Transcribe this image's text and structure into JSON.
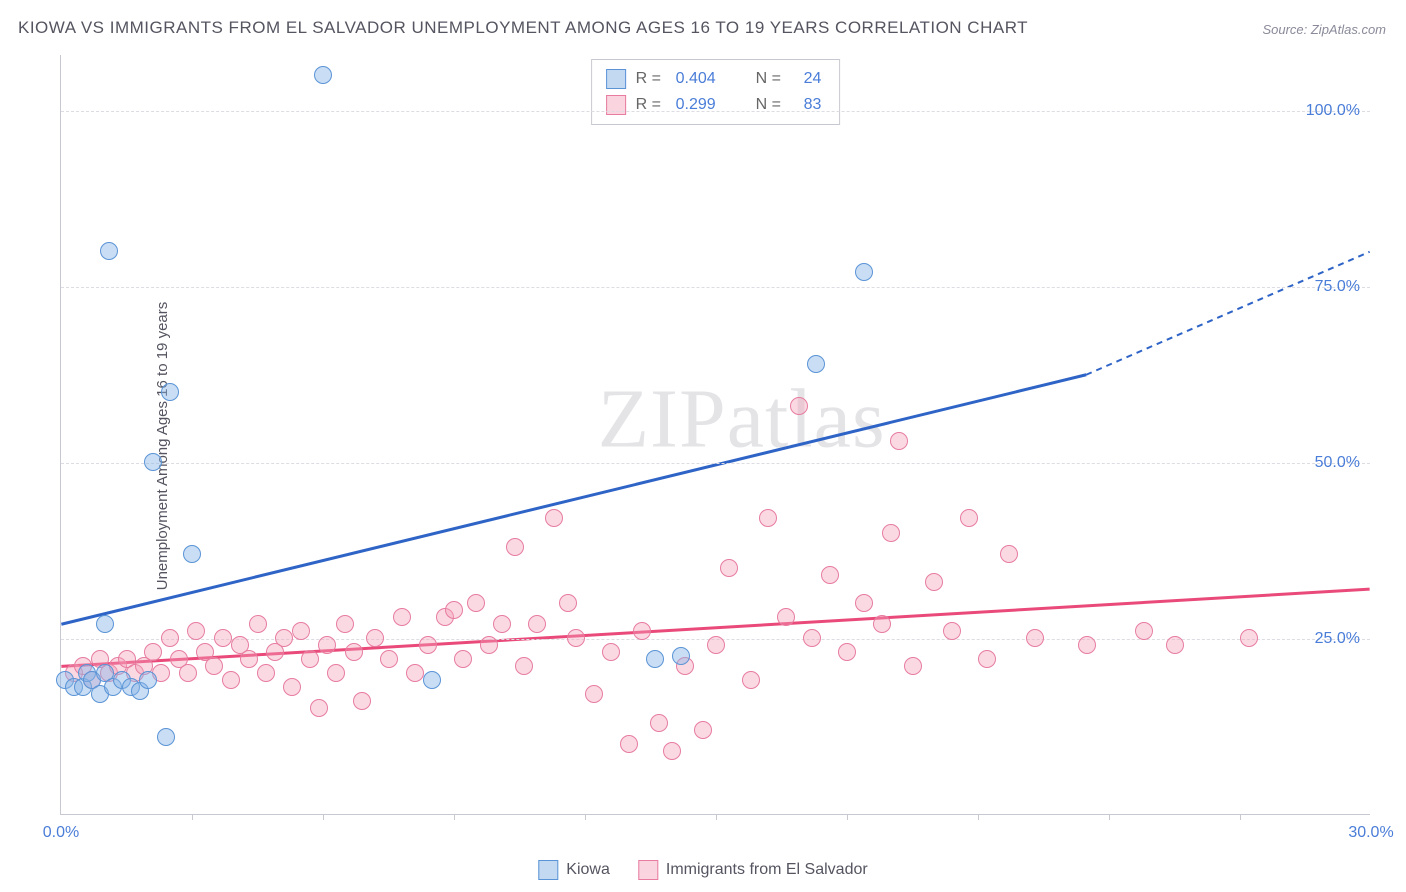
{
  "title": "KIOWA VS IMMIGRANTS FROM EL SALVADOR UNEMPLOYMENT AMONG AGES 16 TO 19 YEARS CORRELATION CHART",
  "source": "Source: ZipAtlas.com",
  "y_axis_label": "Unemployment Among Ages 16 to 19 years",
  "watermark": "ZIPatlas",
  "chart": {
    "type": "scatter",
    "xlim": [
      0,
      30
    ],
    "ylim": [
      0,
      108
    ],
    "x_ticks_major": [
      0,
      30
    ],
    "x_ticks_minor": [
      3,
      6,
      9,
      12,
      15,
      18,
      21,
      24,
      27
    ],
    "x_tick_labels": {
      "0": "0.0%",
      "30": "30.0%"
    },
    "y_gridlines": [
      25,
      50,
      75,
      100
    ],
    "y_tick_labels": {
      "25": "25.0%",
      "50": "50.0%",
      "75": "75.0%",
      "100": "100.0%"
    },
    "grid_color": "#dcdce2",
    "axis_color": "#c8c8d0",
    "background_color": "#ffffff",
    "tick_label_color": "#4a7dd8",
    "tick_label_fontsize": 16,
    "title_color": "#555561",
    "title_fontsize": 17
  },
  "series": {
    "kiowa": {
      "label": "Kiowa",
      "marker_fill": "rgba(135,180,230,0.45)",
      "marker_stroke": "#5a94d6",
      "marker_size": 18,
      "R": "0.404",
      "N": "24",
      "trend": {
        "x1": 0,
        "y1": 27,
        "x2": 23.5,
        "y2": 62.5,
        "x2_dash": 30,
        "y2_dash": 80,
        "color": "#2f64c7",
        "width": 3
      },
      "points": [
        [
          0.1,
          19
        ],
        [
          0.3,
          18
        ],
        [
          0.5,
          18
        ],
        [
          0.6,
          20
        ],
        [
          0.7,
          19
        ],
        [
          0.9,
          17
        ],
        [
          1.0,
          20
        ],
        [
          1.2,
          18
        ],
        [
          1.4,
          19
        ],
        [
          1.6,
          18
        ],
        [
          1.8,
          17.5
        ],
        [
          2.0,
          19
        ],
        [
          1.0,
          27
        ],
        [
          1.1,
          80
        ],
        [
          2.1,
          50
        ],
        [
          2.4,
          11
        ],
        [
          2.5,
          60
        ],
        [
          3.0,
          37
        ],
        [
          6.0,
          105
        ],
        [
          13.6,
          22
        ],
        [
          14.2,
          22.5
        ],
        [
          17.3,
          64
        ],
        [
          18.4,
          77
        ],
        [
          8.5,
          19
        ]
      ]
    },
    "el_salvador": {
      "label": "Immigrants from El Salvador",
      "marker_fill": "rgba(245,160,185,0.40)",
      "marker_stroke": "#e77ca0",
      "marker_size": 18,
      "R": "0.299",
      "N": "83",
      "trend": {
        "x1": 0,
        "y1": 21,
        "x2": 30,
        "y2": 32,
        "color": "#e94a7a",
        "width": 3
      },
      "points": [
        [
          0.3,
          20
        ],
        [
          0.5,
          21
        ],
        [
          0.7,
          19
        ],
        [
          0.9,
          22
        ],
        [
          1.1,
          20
        ],
        [
          1.3,
          21
        ],
        [
          1.5,
          22
        ],
        [
          1.7,
          20
        ],
        [
          1.9,
          21
        ],
        [
          2.1,
          23
        ],
        [
          2.3,
          20
        ],
        [
          2.5,
          25
        ],
        [
          2.7,
          22
        ],
        [
          2.9,
          20
        ],
        [
          3.1,
          26
        ],
        [
          3.3,
          23
        ],
        [
          3.5,
          21
        ],
        [
          3.7,
          25
        ],
        [
          3.9,
          19
        ],
        [
          4.1,
          24
        ],
        [
          4.3,
          22
        ],
        [
          4.5,
          27
        ],
        [
          4.7,
          20
        ],
        [
          4.9,
          23
        ],
        [
          5.1,
          25
        ],
        [
          5.3,
          18
        ],
        [
          5.5,
          26
        ],
        [
          5.7,
          22
        ],
        [
          5.9,
          15
        ],
        [
          6.1,
          24
        ],
        [
          6.3,
          20
        ],
        [
          6.5,
          27
        ],
        [
          6.7,
          23
        ],
        [
          6.9,
          16
        ],
        [
          7.2,
          25
        ],
        [
          7.5,
          22
        ],
        [
          7.8,
          28
        ],
        [
          8.1,
          20
        ],
        [
          8.4,
          24
        ],
        [
          8.8,
          28
        ],
        [
          9.0,
          29
        ],
        [
          9.2,
          22
        ],
        [
          9.5,
          30
        ],
        [
          9.8,
          24
        ],
        [
          10.1,
          27
        ],
        [
          10.4,
          38
        ],
        [
          10.6,
          21
        ],
        [
          10.9,
          27
        ],
        [
          11.3,
          42
        ],
        [
          11.6,
          30
        ],
        [
          11.8,
          25
        ],
        [
          12.2,
          17
        ],
        [
          12.6,
          23
        ],
        [
          13.0,
          10
        ],
        [
          13.3,
          26
        ],
        [
          13.7,
          13
        ],
        [
          14.0,
          9
        ],
        [
          14.3,
          21
        ],
        [
          14.7,
          12
        ],
        [
          15.0,
          24
        ],
        [
          15.3,
          35
        ],
        [
          15.8,
          19
        ],
        [
          16.2,
          42
        ],
        [
          16.6,
          28
        ],
        [
          16.9,
          58
        ],
        [
          17.2,
          25
        ],
        [
          17.6,
          34
        ],
        [
          18.0,
          23
        ],
        [
          18.4,
          30
        ],
        [
          18.8,
          27
        ],
        [
          19.2,
          53
        ],
        [
          19.5,
          21
        ],
        [
          20.0,
          33
        ],
        [
          20.4,
          26
        ],
        [
          20.8,
          42
        ],
        [
          21.2,
          22
        ],
        [
          21.7,
          37
        ],
        [
          22.3,
          25
        ],
        [
          23.5,
          24
        ],
        [
          24.8,
          26
        ],
        [
          25.5,
          24
        ],
        [
          27.2,
          25
        ],
        [
          19.0,
          40
        ]
      ]
    }
  },
  "legend_top": {
    "border_color": "#c8c8d0",
    "r_label": "R =",
    "n_label": "N ="
  },
  "legend_bottom": {
    "items": [
      "kiowa",
      "el_salvador"
    ]
  }
}
